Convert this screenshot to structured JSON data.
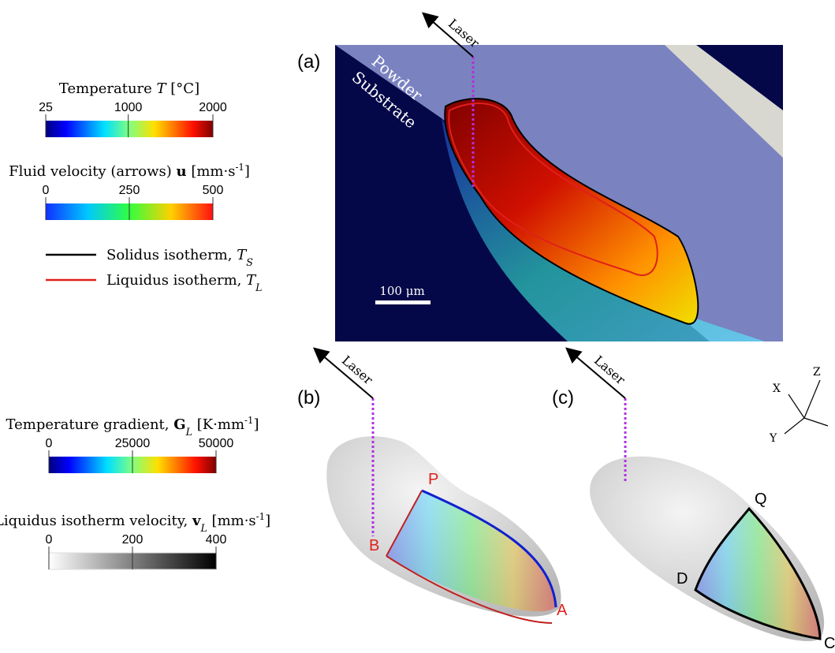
{
  "colorbars": [
    {
      "title": [
        {
          "text": "Temperature "
        },
        {
          "text": "T",
          "style": "italic"
        },
        {
          "text": " [°C]"
        }
      ],
      "range": [
        25,
        2000
      ],
      "ticks": [
        25,
        1000,
        2000
      ],
      "gradient": "jet"
    },
    {
      "title": [
        {
          "text": "Fluid velocity (arrows) "
        },
        {
          "text": "u",
          "style": "bold"
        },
        {
          "text": " [mm·s"
        },
        {
          "text": "-1",
          "style": "sup"
        },
        {
          "text": "]"
        }
      ],
      "range": [
        0,
        500
      ],
      "ticks": [
        0,
        250,
        500
      ],
      "gradient": "turbo"
    },
    {
      "title": [
        {
          "text": "Temperature gradient, "
        },
        {
          "text": "G",
          "style": "bold"
        },
        {
          "text": "L",
          "style": "sub"
        },
        {
          "text": " [K·mm"
        },
        {
          "text": "-1",
          "style": "sup"
        },
        {
          "text": "]"
        }
      ],
      "range": [
        0,
        50000
      ],
      "ticks": [
        0,
        25000,
        50000
      ],
      "gradient": "jet"
    },
    {
      "title": [
        {
          "text": "Liquidus isotherm velocity, "
        },
        {
          "text": "v",
          "style": "bold"
        },
        {
          "text": "L",
          "style": "sub"
        },
        {
          "text": " [mm·s"
        },
        {
          "text": "-1",
          "style": "sup"
        },
        {
          "text": "]"
        }
      ],
      "range": [
        0,
        400
      ],
      "ticks": [
        0,
        200,
        400
      ],
      "gradient": "gray"
    }
  ],
  "legend": [
    {
      "text": [
        {
          "text": "Solidus isotherm, "
        },
        {
          "text": "T",
          "style": "italic"
        },
        {
          "text": "S",
          "style": "sub"
        }
      ],
      "color": "#000000"
    },
    {
      "text": [
        {
          "text": "Liquidus isotherm, "
        },
        {
          "text": "T",
          "style": "italic"
        },
        {
          "text": "L",
          "style": "sub"
        }
      ],
      "color": "#e0201b"
    }
  ],
  "panels": {
    "a": {
      "label": "(a)",
      "laser": "Laser",
      "powder": "Powder",
      "substrate": "Substrate",
      "scale": "100 μm"
    },
    "b": {
      "label": "(b)",
      "laser": "Laser",
      "points": [
        "P",
        "B",
        "A"
      ]
    },
    "c": {
      "label": "(c)",
      "laser": "Laser",
      "points": [
        "Q",
        "D",
        "C"
      ]
    }
  },
  "axes": [
    "X",
    "Y",
    "Z"
  ]
}
